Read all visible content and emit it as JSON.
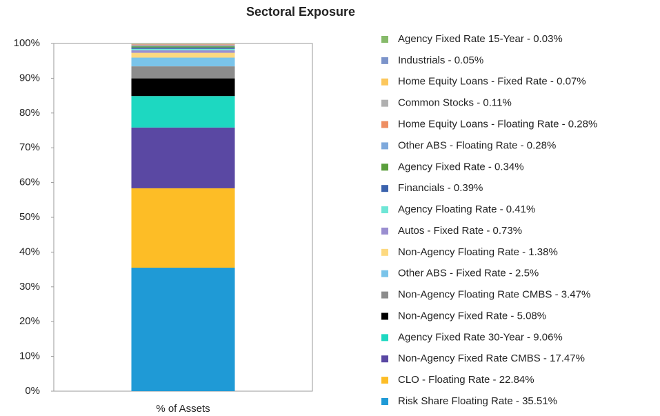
{
  "chart_data": {
    "type": "stacked_bar",
    "title": "Sectoral Exposure",
    "categories": [
      "% of Assets"
    ],
    "ylim": [
      0,
      100
    ],
    "yticks": [
      {
        "value": 0,
        "label": "0%"
      },
      {
        "value": 10,
        "label": "10%"
      },
      {
        "value": 20,
        "label": "20%"
      },
      {
        "value": 30,
        "label": "30%"
      },
      {
        "value": 40,
        "label": "40%"
      },
      {
        "value": 50,
        "label": "50%"
      },
      {
        "value": 60,
        "label": "60%"
      },
      {
        "value": 70,
        "label": "70%"
      },
      {
        "value": 80,
        "label": "80%"
      },
      {
        "value": 90,
        "label": "90%"
      },
      {
        "value": 100,
        "label": "100%"
      }
    ],
    "grid": false,
    "legend": "right",
    "series": [
      {
        "name": "Risk Share Floating Rate - 35.51%",
        "color": "#1f9ad6",
        "values": [
          35.51
        ]
      },
      {
        "name": "CLO - Floating Rate - 22.84%",
        "color": "#fdbd26",
        "values": [
          22.84
        ]
      },
      {
        "name": "Non-Agency Fixed Rate CMBS - 17.47%",
        "color": "#5a48a3",
        "values": [
          17.47
        ]
      },
      {
        "name": "Agency Fixed Rate 30-Year - 9.06%",
        "color": "#1dd8c1",
        "values": [
          9.06
        ]
      },
      {
        "name": "Non-Agency Fixed Rate - 5.08%",
        "color": "#000000",
        "values": [
          5.08
        ]
      },
      {
        "name": "Non-Agency Floating Rate CMBS - 3.47%",
        "color": "#8c8c8c",
        "values": [
          3.47
        ]
      },
      {
        "name": "Other ABS - Fixed Rate - 2.5%",
        "color": "#7ac4ea",
        "values": [
          2.5
        ]
      },
      {
        "name": "Non-Agency Floating Rate - 1.38%",
        "color": "#fdd980",
        "values": [
          1.38
        ]
      },
      {
        "name": "Autos - Fixed Rate - 0.73%",
        "color": "#9a8ed0",
        "values": [
          0.73
        ]
      },
      {
        "name": "Agency Floating Rate - 0.41%",
        "color": "#6fe6d6",
        "values": [
          0.41
        ]
      },
      {
        "name": "Financials - 0.39%",
        "color": "#3b62ad",
        "values": [
          0.39
        ]
      },
      {
        "name": "Agency Fixed Rate - 0.34%",
        "color": "#5a9e3c",
        "values": [
          0.34
        ]
      },
      {
        "name": "Other ABS - Floating Rate - 0.28%",
        "color": "#7ea9dc",
        "values": [
          0.28
        ]
      },
      {
        "name": "Home Equity Loans - Floating Rate - 0.28%",
        "color": "#ee8e62",
        "values": [
          0.28
        ]
      },
      {
        "name": "Common Stocks - 0.11%",
        "color": "#b0b0b0",
        "values": [
          0.11
        ]
      },
      {
        "name": "Home Equity Loans - Fixed Rate - 0.07%",
        "color": "#fcc75c",
        "values": [
          0.07
        ]
      },
      {
        "name": "Industrials - 0.05%",
        "color": "#7c94ca",
        "values": [
          0.05
        ]
      },
      {
        "name": "Agency Fixed Rate 15-Year - 0.03%",
        "color": "#86ba6a",
        "values": [
          0.03
        ]
      }
    ]
  }
}
